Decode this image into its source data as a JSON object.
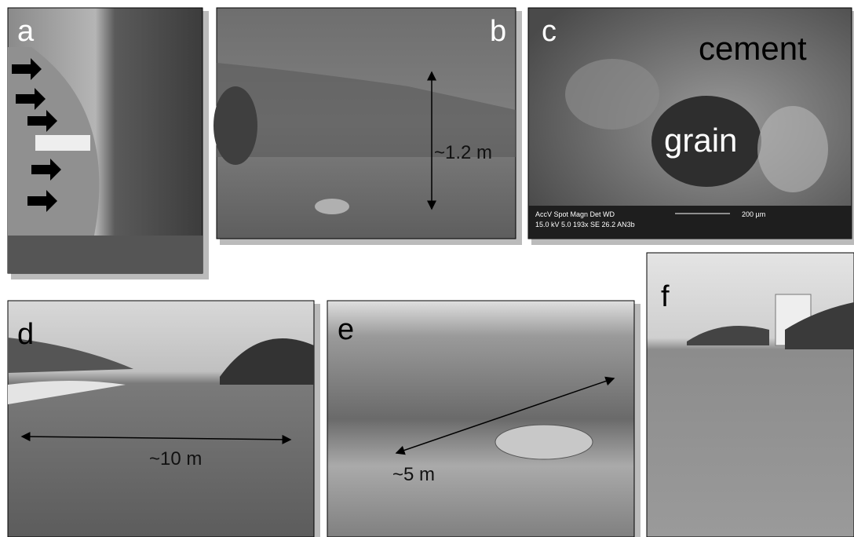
{
  "panels": [
    {
      "label": "a"
    },
    {
      "label": "b",
      "annotations": [
        "~1.2 m"
      ]
    },
    {
      "label": "c",
      "annotations": [
        "cement",
        "grain"
      ],
      "scale_info": [
        "AccV  Spot Magn   Det  WD",
        "15.0 kV 5.0  193x   SE  26.2 AN3b",
        "200 µm"
      ]
    },
    {
      "label": "d",
      "annotations": [
        "~10 m"
      ]
    },
    {
      "label": "e",
      "annotations": [
        "~5 m"
      ]
    },
    {
      "label": "f"
    }
  ]
}
